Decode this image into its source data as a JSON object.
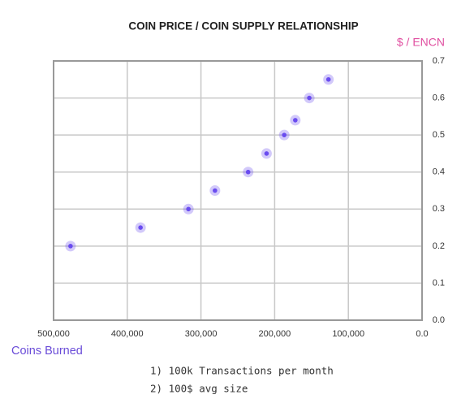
{
  "chart_data": {
    "type": "scatter",
    "title": "COIN PRICE / COIN SUPPLY RELATIONSHIP",
    "x_label": "Coins Burned",
    "y_label": "$ / ENCN",
    "x": [
      477000,
      382000,
      317000,
      281000,
      236000,
      211000,
      187000,
      172000,
      153000,
      127000
    ],
    "values": [
      0.2,
      0.25,
      0.3,
      0.35,
      0.4,
      0.45,
      0.5,
      0.54,
      0.6,
      0.65
    ],
    "color": "#6a4cf0",
    "xlim": [
      500000,
      0
    ],
    "xticks": [
      {
        "value": 500000,
        "label": "500,000"
      },
      {
        "value": 400000,
        "label": "400,000"
      },
      {
        "value": 300000,
        "label": "300,000"
      },
      {
        "value": 200000,
        "label": "200,000"
      },
      {
        "value": 100000,
        "label": "100,000"
      },
      {
        "value": 0,
        "label": "0.0"
      }
    ],
    "ylim": [
      0,
      0.7
    ],
    "yticks": [
      {
        "value": 0,
        "label": "0.0"
      },
      0.1,
      0.2,
      0.3,
      0.4,
      0.5,
      0.6,
      0.7
    ],
    "grid": true
  },
  "notes": [
    "1) 100k Transactions per month",
    "2) 100$ avg size"
  ]
}
